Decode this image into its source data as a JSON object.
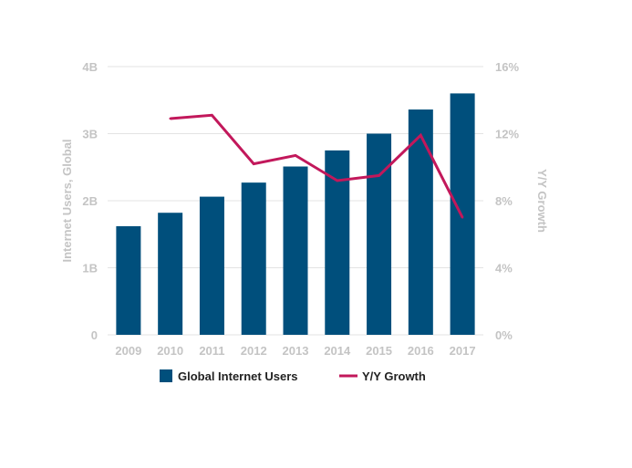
{
  "chart_data": {
    "type": "bar",
    "categories": [
      "2009",
      "2010",
      "2011",
      "2012",
      "2013",
      "2014",
      "2015",
      "2016",
      "2017"
    ],
    "series": [
      {
        "name": "Global Internet Users",
        "type": "bar",
        "axis": "left",
        "unit": "B",
        "values": [
          1.62,
          1.82,
          2.06,
          2.27,
          2.51,
          2.75,
          3.0,
          3.36,
          3.6
        ]
      },
      {
        "name": "Y/Y Growth",
        "type": "line",
        "axis": "right",
        "unit": "%",
        "values": [
          null,
          12.9,
          13.1,
          10.2,
          10.7,
          9.2,
          9.5,
          11.9,
          7.0
        ]
      }
    ],
    "ylabel": "Internet Users, Global",
    "ylabel_right": "Y/Y Growth",
    "ylim": [
      0,
      4
    ],
    "ylim_right": [
      0,
      16
    ],
    "y_ticks": [
      "0",
      "1B",
      "2B",
      "3B",
      "4B"
    ],
    "y_right_ticks": [
      "0%",
      "4%",
      "8%",
      "12%",
      "16%"
    ],
    "colors": {
      "bar": "#004f7c",
      "line": "#c2185b",
      "grid": "#e3e3e3",
      "tick": "#c4c4c4",
      "legend_text": "#222222"
    },
    "grid": true,
    "legend_position": "bottom"
  }
}
